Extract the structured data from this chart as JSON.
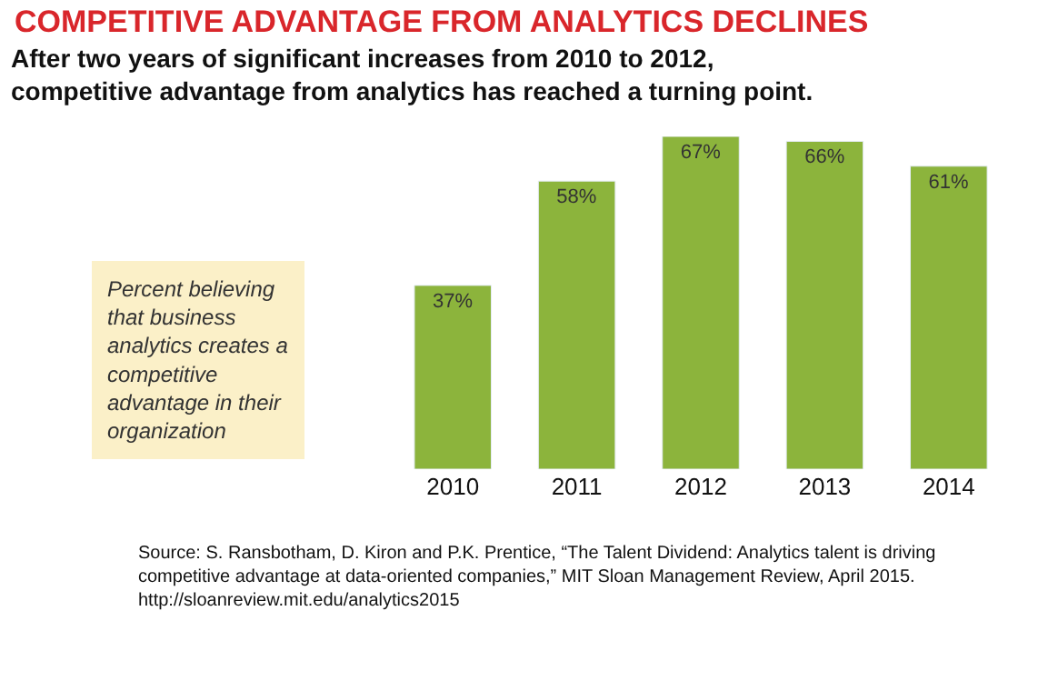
{
  "chart_data": {
    "type": "bar",
    "title": "COMPETITIVE ADVANTAGE FROM ANALYTICS DECLINES",
    "subtitle": "After two years of significant increases from 2010 to 2012, competitive advantage from analytics has reached a turning point.",
    "categories": [
      "2010",
      "2011",
      "2012",
      "2013",
      "2014"
    ],
    "values": [
      37,
      58,
      67,
      66,
      61
    ],
    "value_labels": [
      "37%",
      "58%",
      "67%",
      "66%",
      "61%"
    ],
    "color": "#8cb43c",
    "annotations": [
      "Percent believing that business analytics creates a competitive advantage in their organization",
      "Source: S. Ransbotham, D. Kiron and P.K. Prentice, “The Talent Dividend: Analytics talent is driving competitive advantage at data-oriented companies,” MIT Sloan Management Review, April 2015. http://sloanreview.mit.edu/analytics2015"
    ],
    "legend": false
  }
}
